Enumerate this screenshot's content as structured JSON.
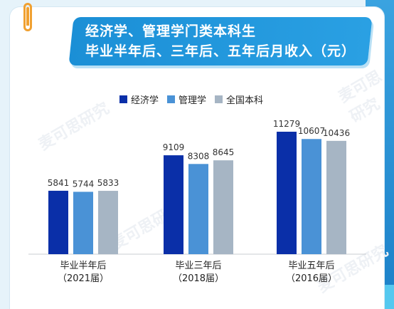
{
  "title": {
    "line1": "经济学、管理学门类本科生",
    "line2": "毕业半年后、三年后、五年后月收入（元）"
  },
  "chart_data": {
    "type": "bar",
    "categories": [
      {
        "line1": "毕业半年后",
        "line2": "（2021届）"
      },
      {
        "line1": "毕业三年后",
        "line2": "（2018届）"
      },
      {
        "line1": "毕业五年后",
        "line2": "（2016届）"
      }
    ],
    "series": [
      {
        "name": "经济学",
        "color": "#0a2fa8",
        "values": [
          5841,
          9109,
          11279
        ]
      },
      {
        "name": "管理学",
        "color": "#4a92d6",
        "values": [
          5744,
          8308,
          10607
        ]
      },
      {
        "name": "全国本科",
        "color": "#a6b5c4",
        "values": [
          5833,
          8645,
          10436
        ]
      }
    ],
    "ylim": [
      0,
      12000
    ],
    "grid": false,
    "legend_position": "top"
  },
  "watermark": "麦可思研究",
  "colors": {
    "accent": "#1b8fd6",
    "clip": "#f0a030",
    "background": "#e6f3fa"
  }
}
